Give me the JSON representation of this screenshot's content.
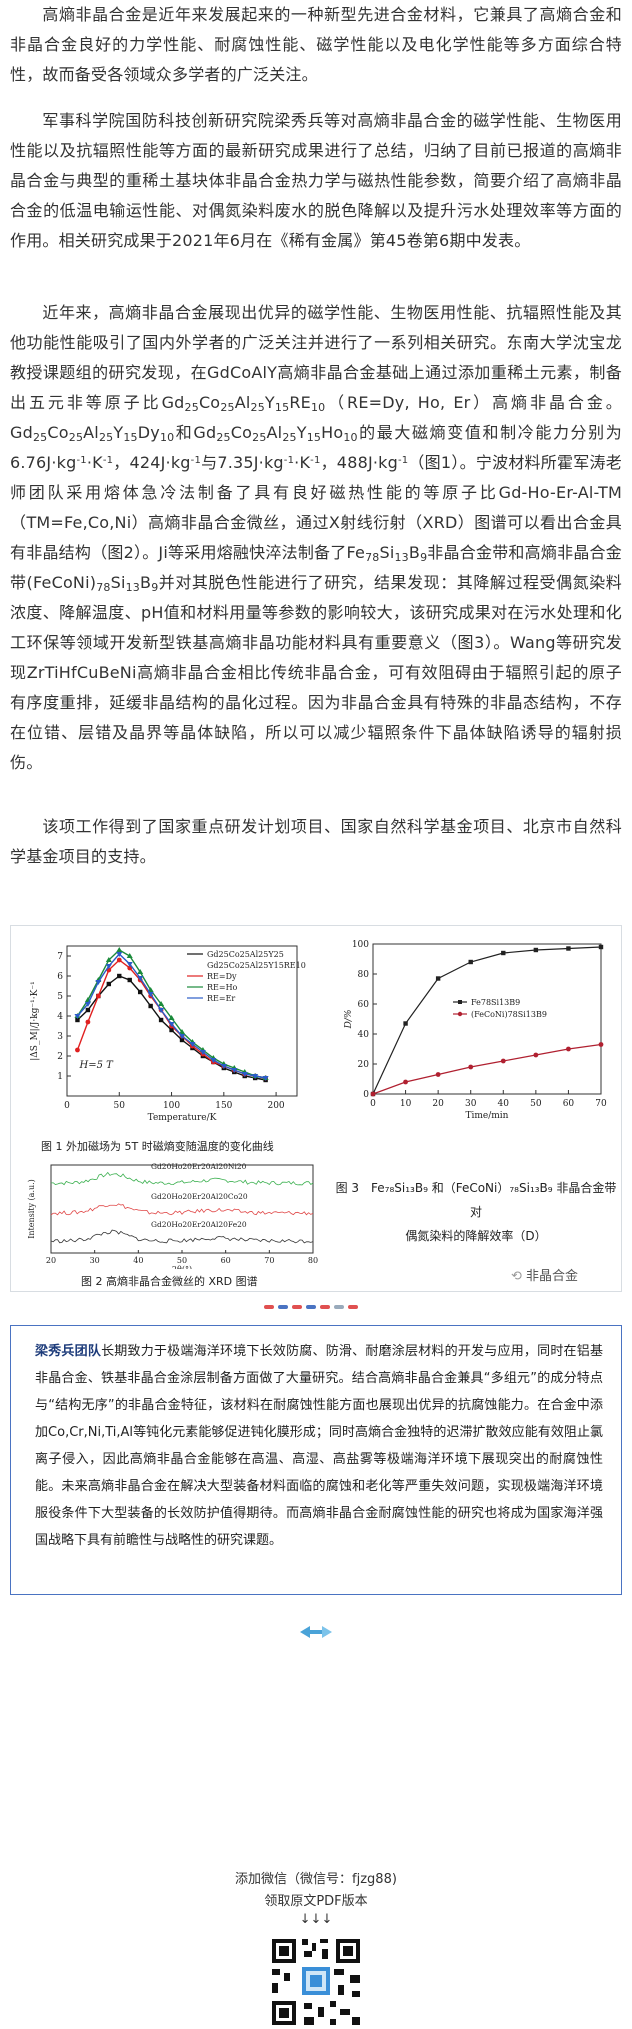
{
  "paragraphs": {
    "p1": "高熵非晶合金是近年来发展起来的一种新型先进合金材料，它兼具了高熵合金和非晶合金良好的力学性能、耐腐蚀性能、磁学性能以及电化学性能等多方面综合特性，故而备受各领域众多学者的广泛关注。",
    "p2": "军事科学院国防科技创新研究院梁秀兵等对高熵非晶合金的磁学性能、生物医用性能以及抗辐照性能等方面的最新研究成果进行了总结，归纳了目前已报道的高熵非晶合金与典型的重稀土基块体非晶合金热力学与磁热性能参数，简要介绍了高熵非晶合金的低温电输运性能、对偶氮染料废水的脱色降解以及提升污水处理效率等方面的作用。相关研究成果于2021年6月在《稀有金属》第45卷第6期中发表。",
    "p3_a": "近年来，高熵非晶合金展现出优异的磁学性能、生物医用性能、抗辐照性能及其他功能性能吸引了国内外学者的广泛关注并进行了一系列相关研究。东南大学沈宝龙教授课题组的研究发现，在GdCoAlY高熵非晶合金基础上通过添加重稀土元素，制备出五元非等原子比Gd",
    "p3_b": "（RE=Dy, Ho, Er）高熵非晶合金。Gd",
    "p3_c": "和Gd",
    "p3_d": "的最大磁熵变值和制冷能力分别为6.76J·kg",
    "p3_e": "，424J·kg",
    "p3_f": "与7.35J·kg",
    "p3_g": "，488J·kg",
    "p3_h": "（图1）。宁波材料所霍军涛老师团队采用熔体急冷法制备了具有良好磁热性能的等原子比Gd-Ho-Er-Al-TM（TM=Fe,Co,Ni）高熵非晶合金微丝，通过X射线衍射（XRD）图谱可以看出合金具有非晶结构（图2）。Ji等采用熔融快淬法制备了Fe",
    "p3_i": "非晶合金带和高熵非晶合金带(FeCoNi)",
    "p3_j": "并对其脱色性能进行了研究，结果发现：其降解过程受偶氮染料浓度、降解温度、pH值和材料用量等参数的影响较大，该研究成果对在污水处理和化工环保等领域开发新型铁基高熵非晶功能材料具有重要意义（图3）。Wang等研究发现ZrTiHfCuBeNi高熵非晶合金相比传统非晶合金，可有效阻碍由于辐照引起的原子有序度重排，延缓非晶结构的晶化过程。因为非晶合金具有特殊的非晶态结构，不存在位错、层错及晶界等晶体缺陷，所以可以减少辐照条件下晶体缺陷诱导的辐射损伤。",
    "p4": "该项工作得到了国家重点研发计划项目、国家自然科学基金项目、北京市自然科学基金项目的支持。"
  },
  "figure": {
    "fig1_caption": "图 1 外加磁场为 5T 时磁熵变随温度的变化曲线",
    "fig2_caption": "图 2 高熵非晶合金微丝的 XRD 图谱",
    "fig3_caption_line1": "图 3　Fe₇₈Si₁₃B₉ 和（FeCoNi）₇₈Si₁₃B₉ 非晶合金带对",
    "fig3_caption_line2": "偶氮染料的降解效率（D）",
    "watermark": "非晶合金"
  },
  "chart_data": [
    {
      "type": "line",
      "title": "",
      "xlabel": "Temperature/K",
      "ylabel": "|ΔS_M|/J·kg⁻¹·K⁻¹",
      "xlim": [
        0,
        220
      ],
      "ylim": [
        0,
        7.5
      ],
      "x_ticks": [
        0,
        50,
        100,
        150,
        200
      ],
      "y_ticks": [
        1,
        2,
        3,
        4,
        5,
        6,
        7
      ],
      "annotation": "H=5 T",
      "legend": [
        "Gd25Co25Al25Y25",
        "Gd25Co25Al25Y15RE10",
        "RE=Dy",
        "RE=Ho",
        "RE=Er"
      ],
      "series": [
        {
          "name": "Gd25Co25Al25Y25",
          "color": "#111111",
          "x": [
            10,
            20,
            30,
            40,
            50,
            60,
            70,
            80,
            90,
            100,
            110,
            120,
            130,
            140,
            150,
            160,
            170,
            180,
            190
          ],
          "values": [
            3.8,
            4.3,
            5.0,
            5.6,
            6.0,
            5.8,
            5.2,
            4.5,
            3.8,
            3.3,
            2.8,
            2.4,
            2.0,
            1.7,
            1.4,
            1.2,
            1.0,
            0.9,
            0.8
          ]
        },
        {
          "name": "RE=Dy",
          "color": "#e02020",
          "x": [
            10,
            20,
            30,
            40,
            50,
            60,
            70,
            80,
            90,
            100,
            110,
            120,
            130,
            140,
            150,
            160,
            170,
            180,
            190
          ],
          "values": [
            2.3,
            3.7,
            5.0,
            6.3,
            6.8,
            6.4,
            5.8,
            5.0,
            4.3,
            3.5,
            3.0,
            2.5,
            2.1,
            1.7,
            1.5,
            1.3,
            1.1,
            1.0,
            0.9
          ]
        },
        {
          "name": "RE=Ho",
          "color": "#1a8a3a",
          "x": [
            10,
            20,
            30,
            40,
            50,
            60,
            70,
            80,
            90,
            100,
            110,
            120,
            130,
            140,
            150,
            160,
            170,
            180,
            190
          ],
          "values": [
            4.0,
            4.8,
            5.8,
            6.8,
            7.3,
            7.0,
            6.2,
            5.3,
            4.6,
            3.9,
            3.2,
            2.7,
            2.3,
            1.9,
            1.6,
            1.4,
            1.2,
            1.0,
            0.9
          ]
        },
        {
          "name": "RE=Er",
          "color": "#2a5cc8",
          "x": [
            10,
            20,
            30,
            40,
            50,
            60,
            70,
            80,
            90,
            100,
            110,
            120,
            130,
            140,
            150,
            160,
            170,
            180,
            190
          ],
          "values": [
            4.0,
            4.6,
            5.7,
            6.5,
            7.1,
            6.6,
            5.9,
            5.1,
            4.3,
            3.6,
            3.0,
            2.6,
            2.2,
            1.8,
            1.5,
            1.3,
            1.1,
            1.0,
            0.9
          ]
        }
      ]
    },
    {
      "type": "line",
      "title": "",
      "xlabel": "Time/min",
      "ylabel": "D/%",
      "xlim": [
        0,
        70
      ],
      "ylim": [
        0,
        100
      ],
      "x_ticks": [
        0,
        10,
        20,
        30,
        40,
        50,
        60,
        70
      ],
      "y_ticks": [
        0,
        20,
        40,
        60,
        80,
        100
      ],
      "legend": [
        "Fe78Si13B9",
        "(FeCoNi)78Si13B9"
      ],
      "series": [
        {
          "name": "Fe78Si13B9",
          "color": "#222222",
          "x": [
            0,
            10,
            20,
            30,
            40,
            50,
            60,
            70
          ],
          "values": [
            0,
            47,
            77,
            88,
            94,
            96,
            97,
            98
          ]
        },
        {
          "name": "(FeCoNi)78Si13B9",
          "color": "#b02030",
          "x": [
            0,
            10,
            20,
            30,
            40,
            50,
            60,
            70
          ],
          "values": [
            0,
            8,
            13,
            18,
            22,
            26,
            30,
            33
          ]
        }
      ]
    },
    {
      "type": "line",
      "title": "",
      "xlabel": "2θ(°)",
      "ylabel": "Intensity (a.u.)",
      "xlim": [
        20,
        80
      ],
      "x_ticks": [
        20,
        30,
        40,
        50,
        60,
        70,
        80
      ],
      "series": [
        {
          "name": "Gd20Ho20Er20Al20Ni20",
          "color": "#3cb050"
        },
        {
          "name": "Gd20Ho20Er20Al20Co20",
          "color": "#e04848"
        },
        {
          "name": "Gd20Ho20Er20Al20Fe20",
          "color": "#333333"
        }
      ]
    }
  ],
  "team": {
    "name": "梁秀兵团队",
    "text": "长期致力于极端海洋环境下长效防腐、防滑、耐磨涂层材料的开发与应用，同时在铝基非晶合金、铁基非晶合金涂层制备方面做了大量研究。结合高熵非晶合金兼具“多组元”的成分特点与“结构无序”的非晶合金特征，该材料在耐腐蚀性能方面也展现出优异的抗腐蚀能力。在合金中添加Co,Cr,Ni,Ti,Al等钝化元素能够促进钝化膜形成；同时高熵合金独特的迟滞扩散效应能有效阻止氯离子侵入，因此高熵非晶合金能够在高温、高湿、高盐雾等极端海洋环境下展现突出的耐腐蚀性能。未来高熵非晶合金在解决大型装备材料面临的腐蚀和老化等严重失效问题，实现极端海洋环境服役条件下大型装备的长效防护值得期待。而高熵非晶合金耐腐蚀性能的研究也将成为国家海洋强国战略下具有前瞻性与战略性的研究课题。"
  },
  "footer": {
    "wechat": "添加微信（微信号：fjzg88)",
    "pdf": "领取原文PDF版本",
    "arrows": "↓↓↓"
  }
}
